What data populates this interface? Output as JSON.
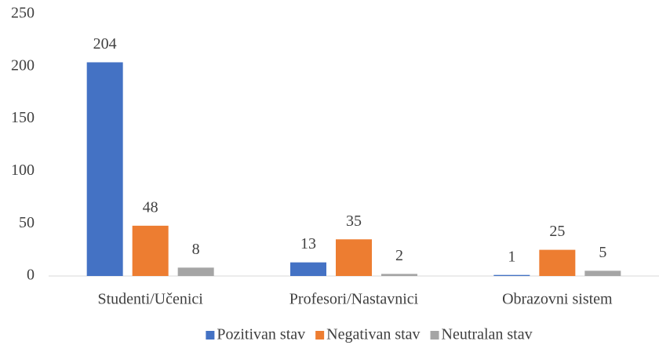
{
  "chart_data": {
    "type": "bar",
    "categories": [
      "Studenti/Učenici",
      "Profesori/Nastavnici",
      "Obrazovni sistem"
    ],
    "series": [
      {
        "name": "Pozitivan stav",
        "color": "#4472c4",
        "values": [
          204,
          13,
          1
        ]
      },
      {
        "name": "Negativan stav",
        "color": "#ed7d31",
        "values": [
          48,
          35,
          25
        ]
      },
      {
        "name": "Neutralan stav",
        "color": "#a5a5a5",
        "values": [
          8,
          2,
          5
        ]
      }
    ],
    "ylim": [
      0,
      250
    ],
    "yticks": [
      0,
      50,
      100,
      150,
      200,
      250
    ],
    "grid": false,
    "legend": "bottom"
  }
}
